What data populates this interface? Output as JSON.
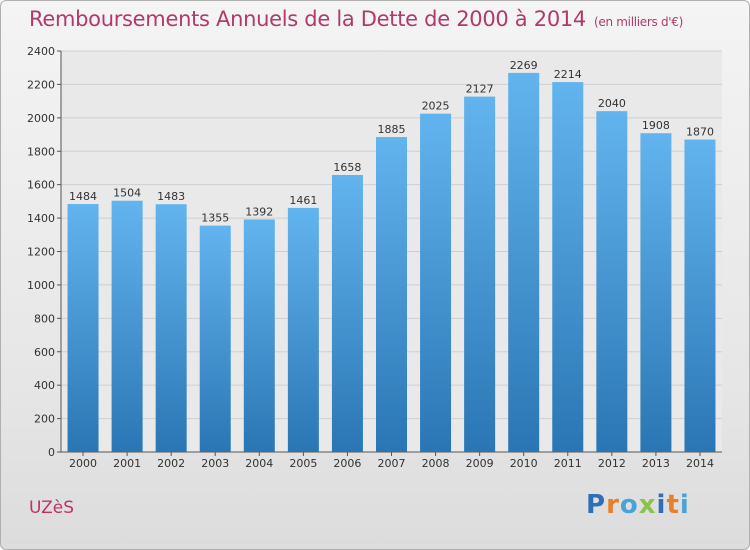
{
  "header": {
    "title": "Remboursements Annuels de la Dette de 2000 à 2014",
    "subtitle": "(en milliers d'€)"
  },
  "footer": {
    "city": "UZèS",
    "logo": "Proxiti"
  },
  "colors": {
    "title": "#b03a6e",
    "bar_top": "#62b4ee",
    "bar_bottom": "#2a76b4",
    "logo_letters": [
      "#2f6fb7",
      "#e8802a",
      "#4aa3d8",
      "#8bc34a",
      "#2f6fb7",
      "#e8802a",
      "#4aa3d8"
    ]
  },
  "chart_data": {
    "type": "bar",
    "title": "Remboursements Annuels de la Dette de 2000 à 2014",
    "categories": [
      "2000",
      "2001",
      "2002",
      "2003",
      "2004",
      "2005",
      "2006",
      "2007",
      "2008",
      "2009",
      "2010",
      "2011",
      "2012",
      "2013",
      "2014"
    ],
    "values": [
      1484,
      1504,
      1483,
      1355,
      1392,
      1461,
      1658,
      1885,
      2025,
      2127,
      2269,
      2214,
      2040,
      1908,
      1870
    ],
    "ylim": [
      0,
      2400
    ],
    "yticks": [
      0,
      200,
      400,
      600,
      800,
      1000,
      1200,
      1400,
      1600,
      1800,
      2000,
      2200,
      2400
    ],
    "grid": true,
    "data_labels": true
  }
}
